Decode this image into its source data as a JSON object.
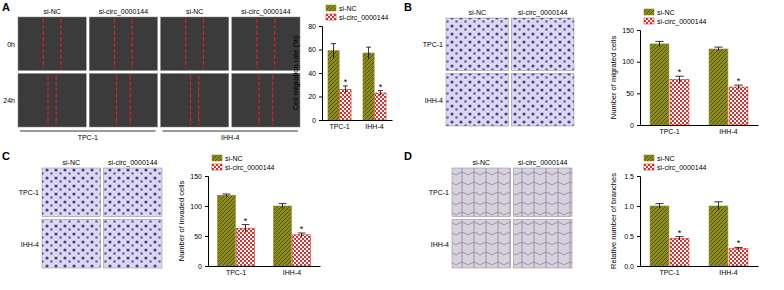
{
  "chart_data": [
    {
      "type": "bar",
      "panel": "A",
      "image_grid": {
        "columns": [
          "si-NC",
          "si-circ_0000144",
          "si-NC",
          "si-circ_0000144"
        ],
        "rows": [
          "0h",
          "24h"
        ],
        "groups": [
          "TPC-1",
          "IHH-4"
        ]
      },
      "ylabel": "Cell migration rate (%)",
      "categories": [
        "TPC-1",
        "IHH-4"
      ],
      "series": [
        {
          "name": "si-NC",
          "color": "#8c8c1e",
          "values": [
            59,
            57
          ],
          "errors": [
            6,
            5
          ]
        },
        {
          "name": "si-circ_0000144",
          "color": "#d9302c",
          "values": [
            26,
            23
          ],
          "errors": [
            3,
            2
          ],
          "annotations": [
            "*",
            "*"
          ]
        }
      ],
      "ylim": [
        0,
        80
      ],
      "yticks": [
        0,
        20,
        40,
        60,
        80
      ],
      "legend": "upper left"
    },
    {
      "type": "bar",
      "panel": "B",
      "image_grid": {
        "columns": [
          "si-NC",
          "si-circ_0000144"
        ],
        "rows": [
          "TPC-1",
          "IHH-4"
        ]
      },
      "ylabel": "Number of migrated cells",
      "categories": [
        "TPC-1",
        "IHH-4"
      ],
      "series": [
        {
          "name": "si-NC",
          "color": "#8c8c1e",
          "values": [
            128,
            120
          ],
          "errors": [
            4,
            3
          ]
        },
        {
          "name": "si-circ_0000144",
          "color": "#d9302c",
          "values": [
            72,
            60
          ],
          "errors": [
            5,
            3
          ],
          "annotations": [
            "*",
            "*"
          ]
        }
      ],
      "ylim": [
        0,
        150
      ],
      "yticks": [
        0,
        50,
        100,
        150
      ],
      "legend": "upper left"
    },
    {
      "type": "bar",
      "panel": "C",
      "image_grid": {
        "columns": [
          "si-NC",
          "si-circ_0000144"
        ],
        "rows": [
          "TPC-1",
          "IHH-4"
        ]
      },
      "ylabel": "Number of invaded cells",
      "categories": [
        "TPC-1",
        "IHH-4"
      ],
      "series": [
        {
          "name": "si-NC",
          "color": "#8c8c1e",
          "values": [
            118,
            100
          ],
          "errors": [
            2,
            4
          ]
        },
        {
          "name": "si-circ_0000144",
          "color": "#d9302c",
          "values": [
            63,
            52
          ],
          "errors": [
            6,
            3
          ],
          "annotations": [
            "*",
            "*"
          ]
        }
      ],
      "ylim": [
        0,
        150
      ],
      "yticks": [
        0,
        50,
        100,
        150
      ],
      "legend": "upper left"
    },
    {
      "type": "bar",
      "panel": "D",
      "image_grid": {
        "columns": [
          "si-NC",
          "si-circ_0000144"
        ],
        "rows": [
          "TPC-1",
          "IHH-4"
        ]
      },
      "ylabel": "Relative number of branches",
      "categories": [
        "TPC-1",
        "IHH-4"
      ],
      "series": [
        {
          "name": "si-NC",
          "color": "#8c8c1e",
          "values": [
            1.0,
            1.0
          ],
          "errors": [
            0.04,
            0.07
          ]
        },
        {
          "name": "si-circ_0000144",
          "color": "#d9302c",
          "values": [
            0.46,
            0.29
          ],
          "errors": [
            0.03,
            0.02
          ],
          "annotations": [
            "*",
            "*"
          ]
        }
      ],
      "ylim": [
        0,
        1.5
      ],
      "yticks": [
        {
          "value": 0,
          "label": "0.0"
        },
        0.5,
        {
          "value": 1,
          "label": "1.0"
        },
        1.5
      ],
      "legend": "upper left"
    }
  ]
}
